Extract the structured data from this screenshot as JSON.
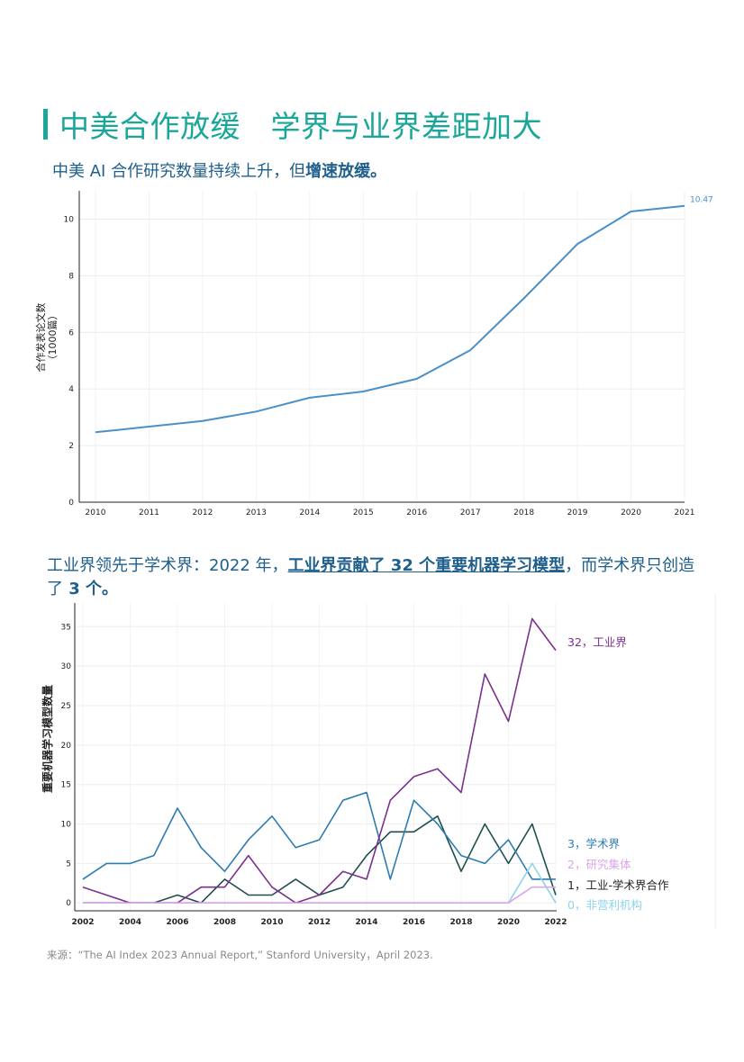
{
  "header": {
    "title": "中美合作放缓　学界与业界差距加大"
  },
  "section1": {
    "text_before": "中美 AI 合作研究数量持续上升，但",
    "text_bold": "增速放缓。"
  },
  "section2": {
    "text_before": "工业界领先于学术界：2022 年，",
    "text_bold": "工业界贡献了 32 个重要机器学习模型",
    "text_after": "，而学术界只创造了",
    "text_bold2": " 3 个。"
  },
  "source": "来源：“The AI Index 2023 Annual Report,” Stanford University，April 2023.",
  "chart_data": [
    {
      "type": "line",
      "title": "中美 AI 合作研究数量持续上升，但增速放缓。",
      "ylabel": "合作发表论文数",
      "ylabel2": "（1000篇）",
      "xlabel": "",
      "x": [
        2010,
        2011,
        2012,
        2013,
        2014,
        2015,
        2016,
        2017,
        2018,
        2019,
        2020,
        2021
      ],
      "ylim": [
        0,
        11
      ],
      "yticks": [
        0,
        2,
        4,
        6,
        8,
        10
      ],
      "series": [
        {
          "name": "中美合作",
          "color": "#4a90c8",
          "values": [
            2.47,
            2.67,
            2.87,
            3.2,
            3.69,
            3.91,
            4.36,
            5.37,
            7.2,
            9.12,
            10.27,
            10.47
          ]
        }
      ],
      "annotations": [
        {
          "x": 2021,
          "text": "10.47"
        }
      ]
    },
    {
      "type": "line",
      "title": "工业界领先于学术界",
      "ylabel": "重要机器学习模型数量",
      "xlabel": "",
      "x": [
        2002,
        2003,
        2004,
        2005,
        2006,
        2007,
        2008,
        2009,
        2010,
        2011,
        2012,
        2013,
        2014,
        2015,
        2016,
        2017,
        2018,
        2019,
        2020,
        2021,
        2022
      ],
      "ylim": [
        -1,
        38
      ],
      "yticks": [
        0,
        5,
        10,
        15,
        20,
        25,
        30,
        35
      ],
      "xticks": [
        2002,
        2004,
        2006,
        2008,
        2010,
        2012,
        2014,
        2016,
        2018,
        2020,
        2022
      ],
      "series": [
        {
          "name": "工业界",
          "label": "32，工业界",
          "color": "#7b2f8e",
          "values": [
            2,
            1,
            0,
            0,
            0,
            2,
            2,
            6,
            2,
            0,
            1,
            4,
            3,
            13,
            16,
            17,
            14,
            29,
            23,
            36,
            32
          ]
        },
        {
          "name": "学术界",
          "label": "3，学术界",
          "color": "#2e7bb0",
          "values": [
            3,
            5,
            5,
            6,
            12,
            7,
            4,
            8,
            11,
            7,
            8,
            13,
            14,
            3,
            13,
            10,
            6,
            5,
            8,
            3,
            3
          ]
        },
        {
          "name": "研究集体",
          "label": "2，研究集体",
          "color": "#d9a6e8",
          "values": [
            0,
            0,
            0,
            0,
            0,
            0,
            0,
            0,
            0,
            0,
            0,
            0,
            0,
            0,
            0,
            0,
            0,
            0,
            0,
            2,
            2
          ]
        },
        {
          "name": "工业-学术界合作",
          "label": "1，工业-学术界合作",
          "color": "#1f4e4e",
          "values": [
            0,
            0,
            0,
            0,
            1,
            0,
            3,
            1,
            1,
            3,
            1,
            2,
            6,
            9,
            9,
            11,
            4,
            10,
            5,
            10,
            1
          ]
        },
        {
          "name": "非营利机构",
          "label": "0，非营利机构",
          "color": "#8ed3ec",
          "values": [
            0,
            0,
            0,
            0,
            0,
            0,
            0,
            0,
            0,
            0,
            0,
            0,
            0,
            0,
            0,
            0,
            0,
            0,
            0,
            5,
            0
          ]
        }
      ]
    }
  ]
}
